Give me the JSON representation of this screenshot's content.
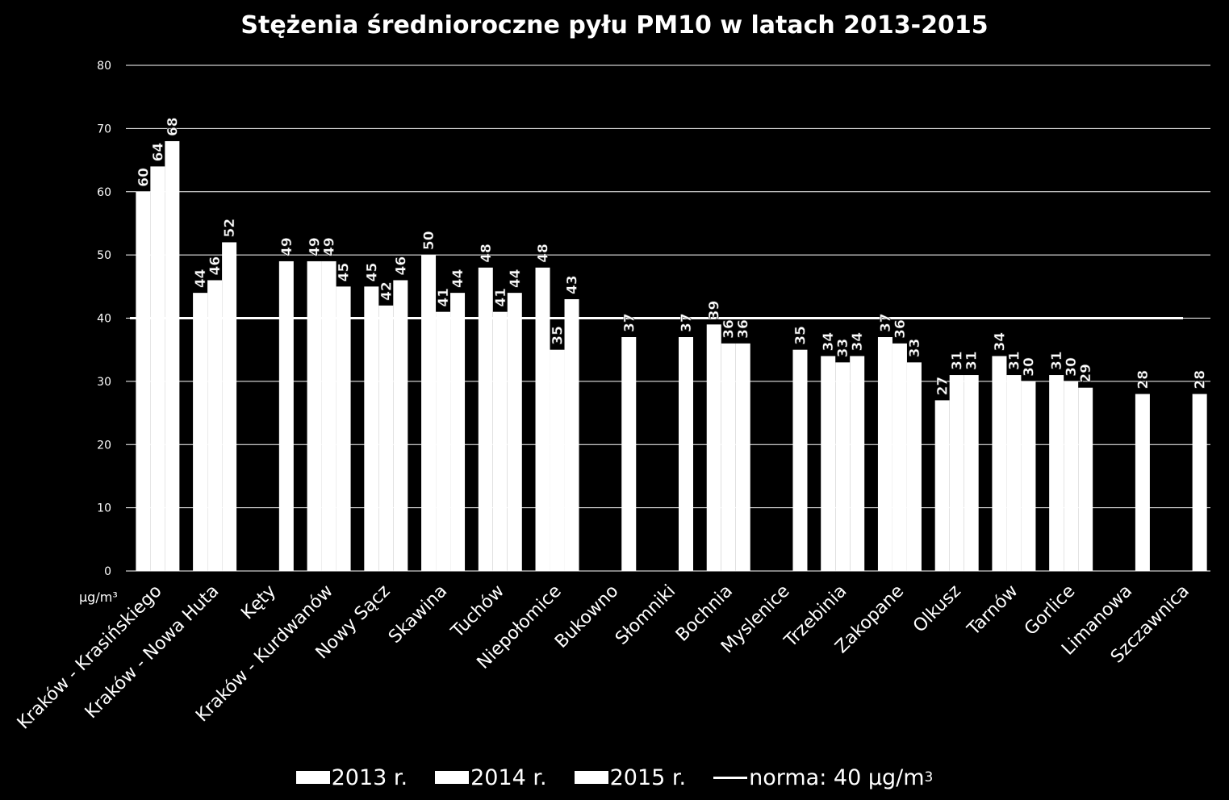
{
  "chart_data": {
    "type": "bar",
    "title": "Stężenia średnioroczne pyłu PM10 w latach 2013-2015",
    "ylabel": "μg/m³",
    "ylim": [
      0,
      80
    ],
    "yticks": [
      0,
      10,
      20,
      30,
      40,
      50,
      60,
      70,
      80
    ],
    "grid": true,
    "legend_position": "bottom",
    "categories": [
      "Kraków - Krasińskiego",
      "Kraków - Nowa Huta",
      "Kęty",
      "Kraków - Kurdwanów",
      "Nowy Sącz",
      "Skawina",
      "Tuchów",
      "Niepołomice",
      "Bukowno",
      "Słomniki",
      "Bochnia",
      "Myslenice",
      "Trzebinia",
      "Zakopane",
      "Olkusz",
      "Tarnów",
      "Gorlice",
      "Limanowa",
      "Szczawnica"
    ],
    "series": [
      {
        "name": "2013 r.",
        "color": "#ffffff",
        "values": [
          60,
          44,
          null,
          49,
          45,
          50,
          48,
          48,
          null,
          null,
          39,
          null,
          34,
          37,
          27,
          34,
          31,
          null,
          null
        ]
      },
      {
        "name": "2014 r.",
        "color": "#ffffff",
        "values": [
          64,
          46,
          null,
          49,
          42,
          41,
          41,
          35,
          null,
          null,
          36,
          null,
          33,
          36,
          31,
          31,
          30,
          null,
          null
        ]
      },
      {
        "name": "2015 r.",
        "color": "#ffffff",
        "values": [
          68,
          52,
          49,
          45,
          46,
          44,
          44,
          43,
          37,
          37,
          36,
          35,
          34,
          33,
          31,
          30,
          29,
          28,
          28
        ]
      }
    ],
    "reference_line": {
      "name": "norma: 40 μg/m³",
      "value": 40,
      "color": "#ffffff"
    },
    "legend": [
      {
        "label": "2013 r.",
        "kind": "box"
      },
      {
        "label": "2014 r.",
        "kind": "box"
      },
      {
        "label": "2015 r.",
        "kind": "box"
      },
      {
        "label": "norma: 40 μg/m",
        "superscript": "3",
        "kind": "line"
      }
    ]
  }
}
